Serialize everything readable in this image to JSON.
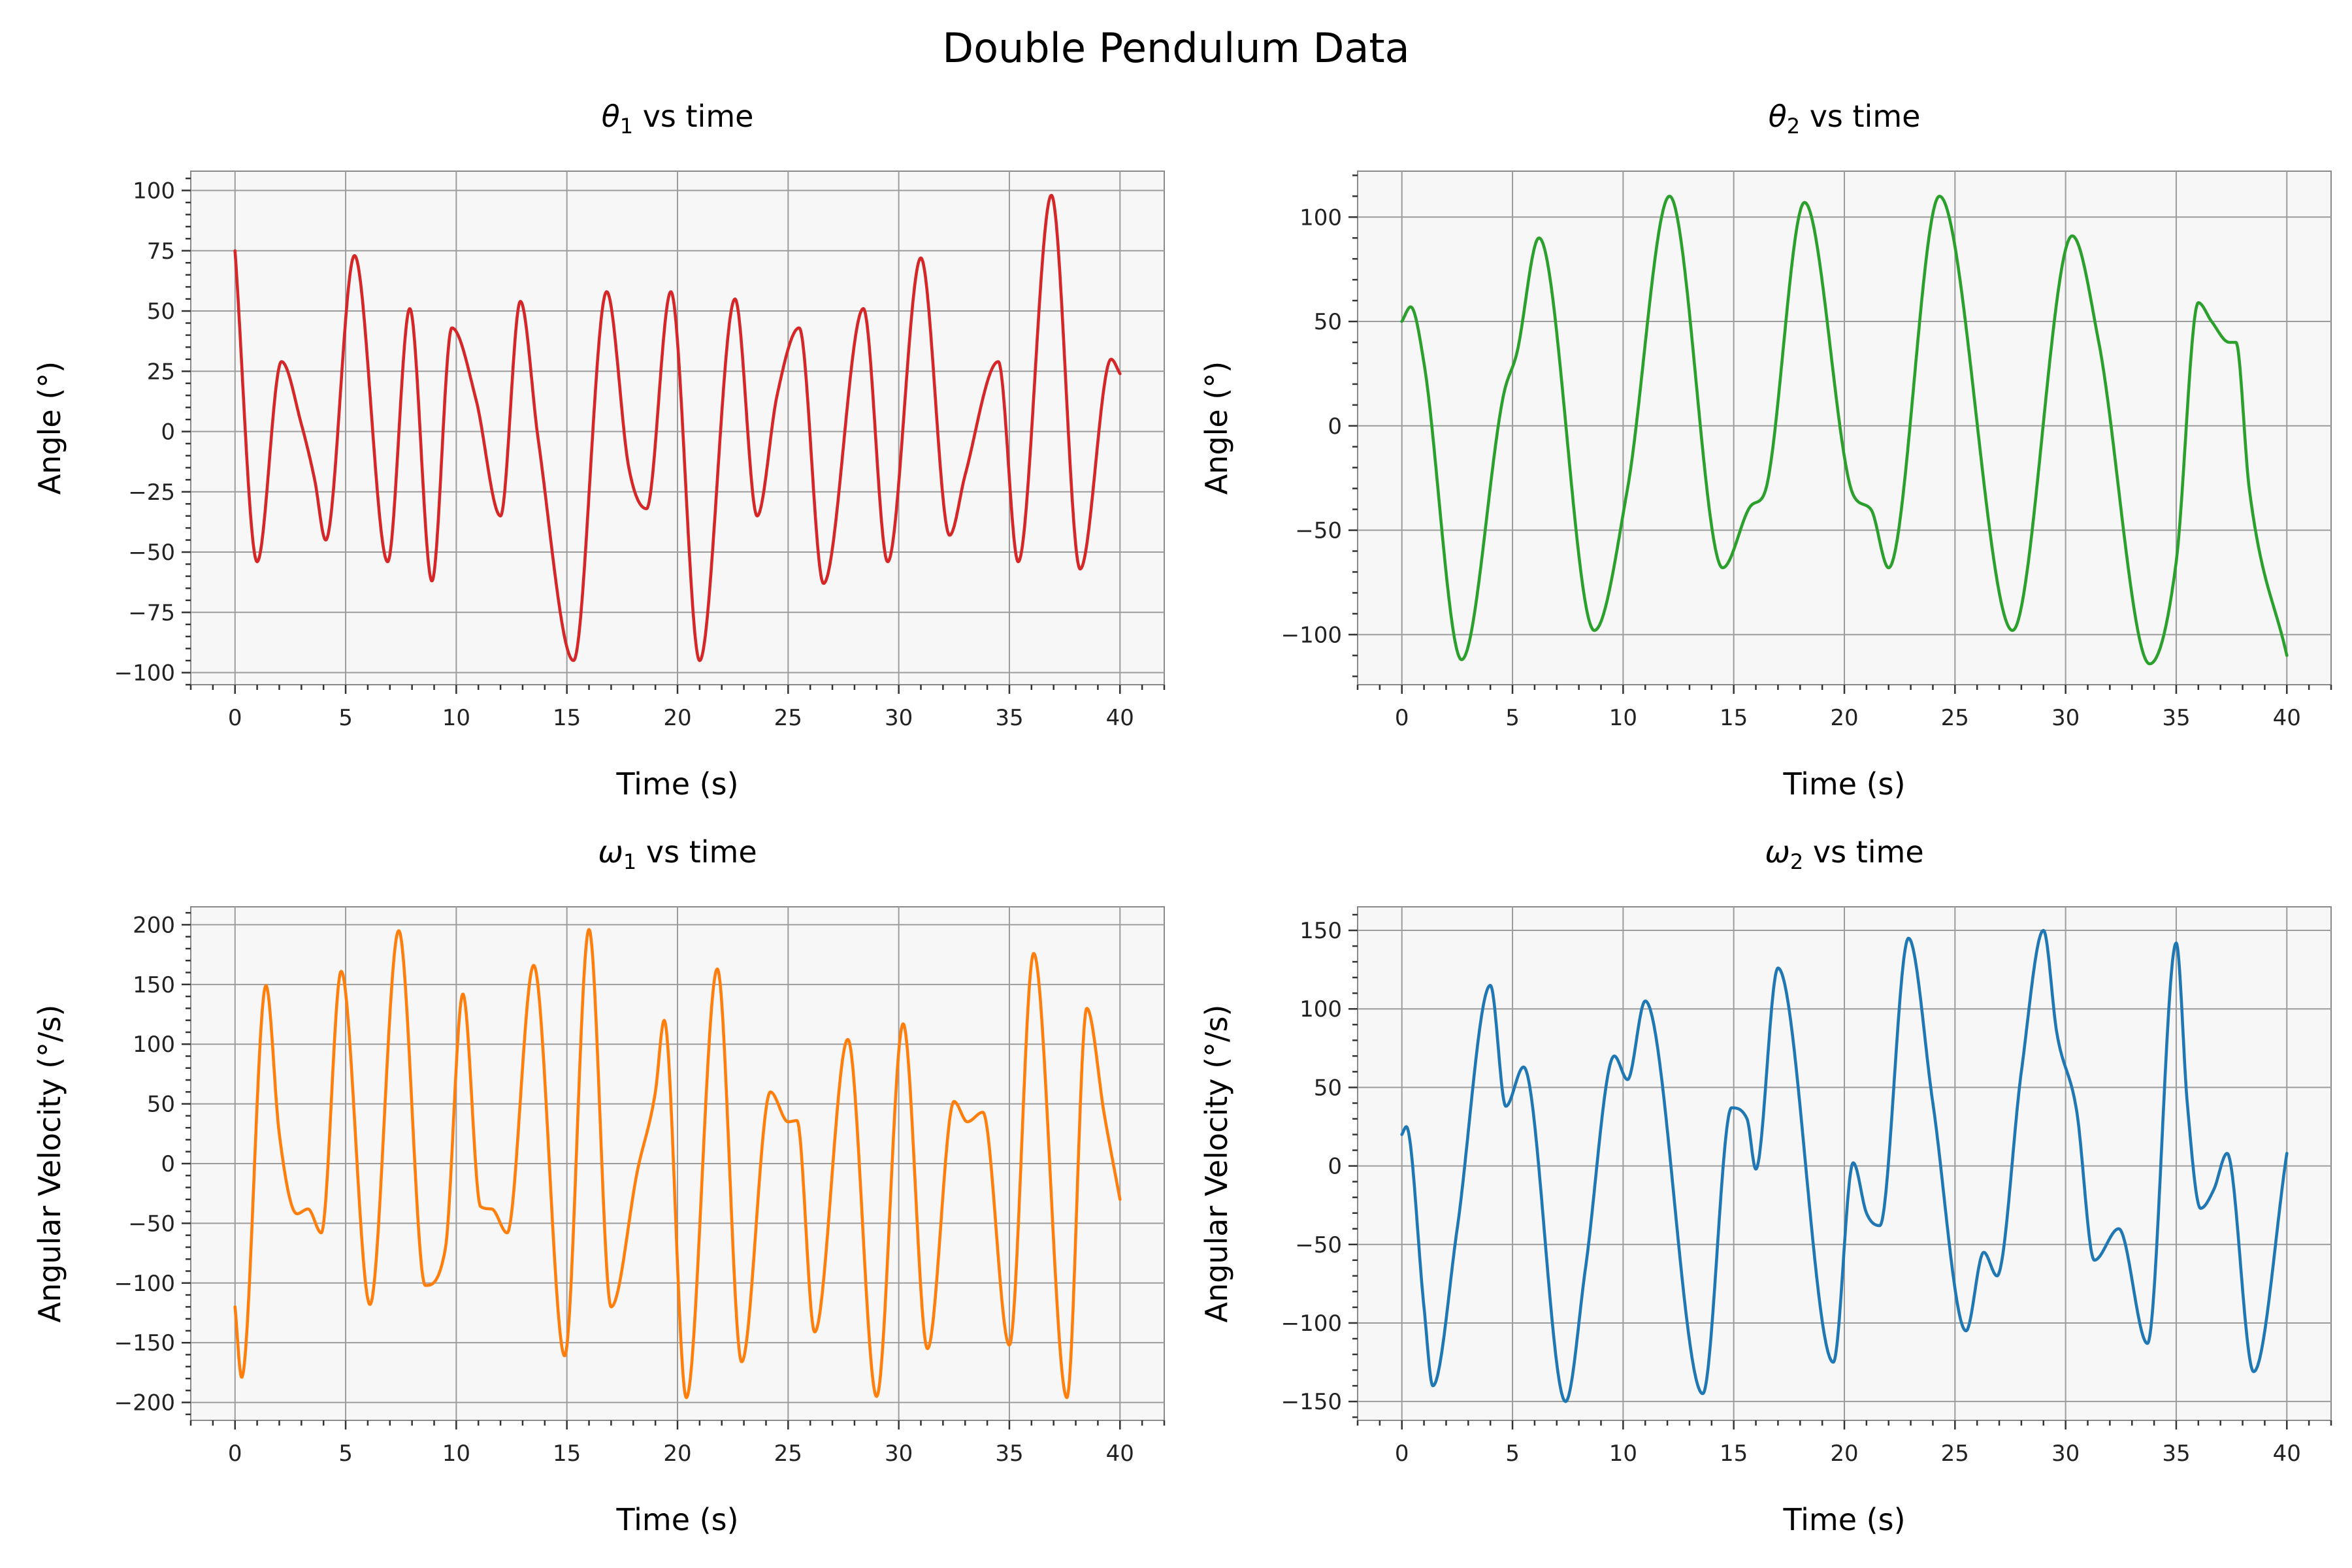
{
  "figure_title": "Double Pendulum Data",
  "chart_data": [
    {
      "type": "line",
      "title_symbol": "θ",
      "title_subscript": "1",
      "title_rest": " vs time",
      "xlabel": "Time (s)",
      "ylabel": "Angle (°)",
      "color": "#d62728",
      "xlim": [
        -2,
        42
      ],
      "ylim": [
        -105,
        108
      ],
      "xticks": [
        0,
        5,
        10,
        15,
        20,
        25,
        30,
        35,
        40
      ],
      "yticks": [
        -100,
        -75,
        -50,
        -25,
        0,
        25,
        50,
        75,
        100
      ],
      "ytick_labels": [
        "−100",
        "−75",
        "−50",
        "−25",
        "0",
        "25",
        "50",
        "75",
        "100"
      ],
      "x": [
        0,
        1.0,
        2.1,
        3.0,
        3.6,
        4.1,
        5.4,
        6.9,
        7.9,
        8.9,
        9.8,
        10.9,
        12.0,
        12.9,
        13.7,
        15.3,
        16.8,
        17.8,
        18.6,
        19.7,
        21.0,
        22.6,
        23.6,
        24.5,
        25.5,
        26.6,
        28.4,
        29.5,
        31.0,
        32.3,
        33.0,
        34.5,
        35.4,
        36.9,
        38.2,
        39.6,
        40
      ],
      "y": [
        75,
        -54,
        29,
        3,
        -20,
        -45,
        73,
        -54,
        51,
        -62,
        43,
        13,
        -35,
        54,
        -3,
        -95,
        58,
        -15,
        -32,
        58,
        -95,
        55,
        -35,
        15,
        43,
        -63,
        51,
        -54,
        72,
        -43,
        -18,
        29,
        -54,
        98,
        -57,
        30,
        24
      ]
    },
    {
      "type": "line",
      "title_symbol": "θ",
      "title_subscript": "2",
      "title_rest": " vs time",
      "xlabel": "Time (s)",
      "ylabel": "Angle (°)",
      "color": "#2ca02c",
      "xlim": [
        -2,
        42
      ],
      "ylim": [
        -124,
        122
      ],
      "xticks": [
        0,
        5,
        10,
        15,
        20,
        25,
        30,
        35,
        40
      ],
      "yticks": [
        -100,
        -50,
        0,
        50,
        100
      ],
      "ytick_labels": [
        "−100",
        "−50",
        "0",
        "50",
        "100"
      ],
      "x": [
        0,
        0.4,
        1.0,
        2.7,
        4.6,
        5.2,
        6.2,
        8.7,
        10.2,
        12.1,
        14.5,
        15.8,
        16.4,
        18.2,
        20.4,
        21.2,
        22.0,
        24.3,
        27.6,
        30.3,
        31.5,
        33.8,
        35.0,
        36.0,
        36.6,
        37.4,
        37.7,
        38.3,
        40
      ],
      "y": [
        50,
        57,
        30,
        -112,
        15,
        35,
        90,
        -98,
        -30,
        110,
        -68,
        -38,
        -32,
        107,
        -33,
        -40,
        -68,
        110,
        -98,
        91,
        40,
        -114,
        -65,
        59,
        50,
        40,
        40,
        -30,
        -110
      ]
    },
    {
      "type": "line",
      "title_symbol": "ω",
      "title_subscript": "1",
      "title_rest": " vs time",
      "xlabel": "Time (s)",
      "ylabel": "Angular Velocity (°/s)",
      "color": "#ff7f0e",
      "xlim": [
        -2,
        42
      ],
      "ylim": [
        -215,
        215
      ],
      "xticks": [
        0,
        5,
        10,
        15,
        20,
        25,
        30,
        35,
        40
      ],
      "yticks": [
        -200,
        -150,
        -100,
        -50,
        0,
        50,
        100,
        150,
        200
      ],
      "ytick_labels": [
        "−200",
        "−150",
        "−100",
        "−50",
        "0",
        "50",
        "100",
        "150",
        "200"
      ],
      "x": [
        0,
        0.3,
        1.4,
        2.0,
        2.8,
        3.3,
        3.9,
        4.8,
        6.1,
        7.4,
        8.6,
        9.5,
        10.3,
        11.1,
        11.6,
        12.3,
        13.5,
        14.9,
        16.0,
        17.0,
        18.2,
        19.0,
        19.4,
        20.4,
        21.8,
        22.9,
        24.2,
        25.0,
        25.4,
        26.2,
        27.7,
        29.0,
        30.2,
        31.3,
        32.5,
        33.1,
        33.8,
        35.0,
        36.1,
        37.6,
        38.5,
        39.3,
        40
      ],
      "y": [
        -120,
        -179,
        149,
        25,
        -42,
        -38,
        -58,
        161,
        -118,
        195,
        -102,
        -72,
        142,
        -36,
        -38,
        -58,
        166,
        -161,
        196,
        -120,
        -5,
        60,
        120,
        -196,
        163,
        -166,
        60,
        35,
        36,
        -141,
        104,
        -195,
        117,
        -155,
        52,
        35,
        43,
        -152,
        176,
        -196,
        130,
        40,
        -30
      ]
    },
    {
      "type": "line",
      "title_symbol": "ω",
      "title_subscript": "2",
      "title_rest": " vs time",
      "xlabel": "Time (s)",
      "ylabel": "Angular Velocity (°/s)",
      "color": "#1f77b4",
      "xlim": [
        -2,
        42
      ],
      "ylim": [
        -162,
        165
      ],
      "xticks": [
        0,
        5,
        10,
        15,
        20,
        25,
        30,
        35,
        40
      ],
      "yticks": [
        -150,
        -100,
        -50,
        0,
        50,
        100,
        150
      ],
      "ytick_labels": [
        "−150",
        "−100",
        "−50",
        "0",
        "50",
        "100",
        "150"
      ],
      "x": [
        0,
        0.2,
        1.0,
        1.4,
        2.5,
        4.0,
        4.7,
        5.5,
        7.4,
        8.3,
        9.6,
        10.2,
        11.0,
        13.6,
        14.9,
        15.6,
        16.0,
        17.0,
        19.5,
        20.4,
        21.0,
        21.6,
        22.9,
        24.0,
        25.5,
        26.3,
        26.9,
        28.0,
        29.0,
        29.6,
        30.5,
        31.3,
        32.4,
        33.7,
        35.0,
        35.5,
        36.1,
        36.7,
        37.3,
        38.5,
        40
      ],
      "y": [
        20,
        25,
        -90,
        -140,
        -40,
        115,
        38,
        63,
        -150,
        -65,
        70,
        55,
        105,
        -145,
        37,
        30,
        -2,
        126,
        -125,
        2,
        -30,
        -38,
        145,
        40,
        -105,
        -55,
        -70,
        60,
        150,
        85,
        35,
        -60,
        -40,
        -113,
        142,
        40,
        -27,
        -15,
        8,
        -131,
        8
      ]
    }
  ]
}
